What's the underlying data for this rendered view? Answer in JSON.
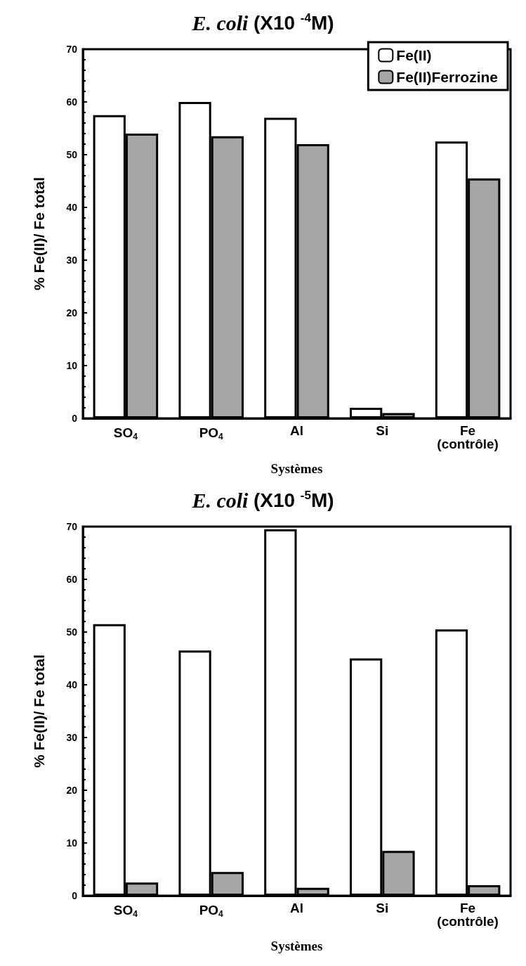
{
  "chart_data": [
    {
      "type": "bar",
      "title": "E. coli (X10 $^{-4}$M)",
      "xlabel": "Systèmes",
      "ylabel": "% Fe(II)/ Fe total",
      "categories": [
        "SO$_{4}$",
        "PO$_{4}$",
        "Al",
        "Si",
        "Fe\n(contrôle)"
      ],
      "ylim": [
        0,
        70
      ],
      "yticks": [
        0,
        10,
        20,
        30,
        40,
        50,
        60,
        70
      ],
      "grid": false,
      "legend": "top right",
      "series": [
        {
          "name": "Fe(II)",
          "color": "#ffffff",
          "values": [
            57.5,
            60,
            57,
            2,
            52.5
          ]
        },
        {
          "name": "Fe(II)Ferrozine",
          "color": "#a6a6a6",
          "values": [
            54,
            53.5,
            52,
            1,
            45.5
          ]
        }
      ]
    },
    {
      "type": "bar",
      "title": "E. coli (X10 $^{-5}$M)",
      "xlabel": "Systèmes",
      "ylabel": "% Fe(II)/ Fe total",
      "categories": [
        "SO$_{4}$",
        "PO$_{4}$",
        "Al",
        "Si",
        "Fe\n(contrôle)"
      ],
      "ylim": [
        0,
        70
      ],
      "yticks": [
        0,
        10,
        20,
        30,
        40,
        50,
        60,
        70
      ],
      "grid": false,
      "series": [
        {
          "color": "#ffffff",
          "values": [
            51.5,
            46.5,
            69.5,
            45,
            50.5
          ]
        },
        {
          "color": "#a6a6a6",
          "values": [
            2.5,
            4.5,
            1.5,
            8.5,
            2
          ]
        }
      ]
    }
  ]
}
